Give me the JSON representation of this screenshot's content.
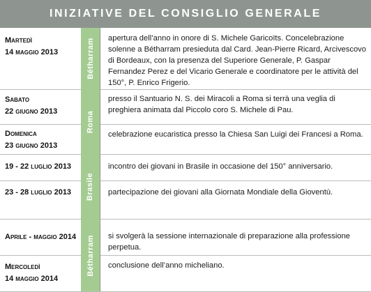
{
  "title": "INIZIATIVE DEL CONSIGLIO GENERALE",
  "places": [
    "Bétharram",
    "Roma",
    "Brasile",
    "Bétharram"
  ],
  "rows": [
    {
      "date1": "Martedì",
      "date2": "14 maggio 2013",
      "text": "apertura dell’anno in onore di S. Michele Garicoïts. Concelebrazione solenne a Bétharram presieduta dal Card. Jean-Pierre Ricard, Arcivescovo di Bordeaux, con la presenza del Superiore Generale, P. Gaspar Fernandez Perez e del Vicario Generale e coordinatore per le attività del 150°, P. Enrico Frigerio."
    },
    {
      "date1": "Sabato",
      "date2": "22 giugno 2013",
      "text": "presso il Santuario N. S. dei Miracoli a Roma si terrà una veglia di preghiera animata dal Piccolo coro S. Michele di Pau."
    },
    {
      "date1": "Domenica",
      "date2": "23 giugno 2013",
      "text": "celebrazione eucaristica presso la Chiesa San Luigi dei Francesi a Roma."
    },
    {
      "date1": "19 - 22 luglio 2013",
      "date2": "",
      "text": "incontro dei giovani in Brasile in occasione del 150° anniversario."
    },
    {
      "date1": "23 - 28 luglio 2013",
      "date2": "",
      "text": "partecipazione dei giovani alla Giornata Mondiale della Gioventù."
    },
    {
      "date1": "Aprile - maggio 2014",
      "date2": "",
      "text": "si svolgerà la sessione internazionale di preparazione alla professione perpetua."
    },
    {
      "date1": "Mercoledì",
      "date2": "14 maggio 2014",
      "text": "conclusione dell’anno micheliano."
    }
  ]
}
